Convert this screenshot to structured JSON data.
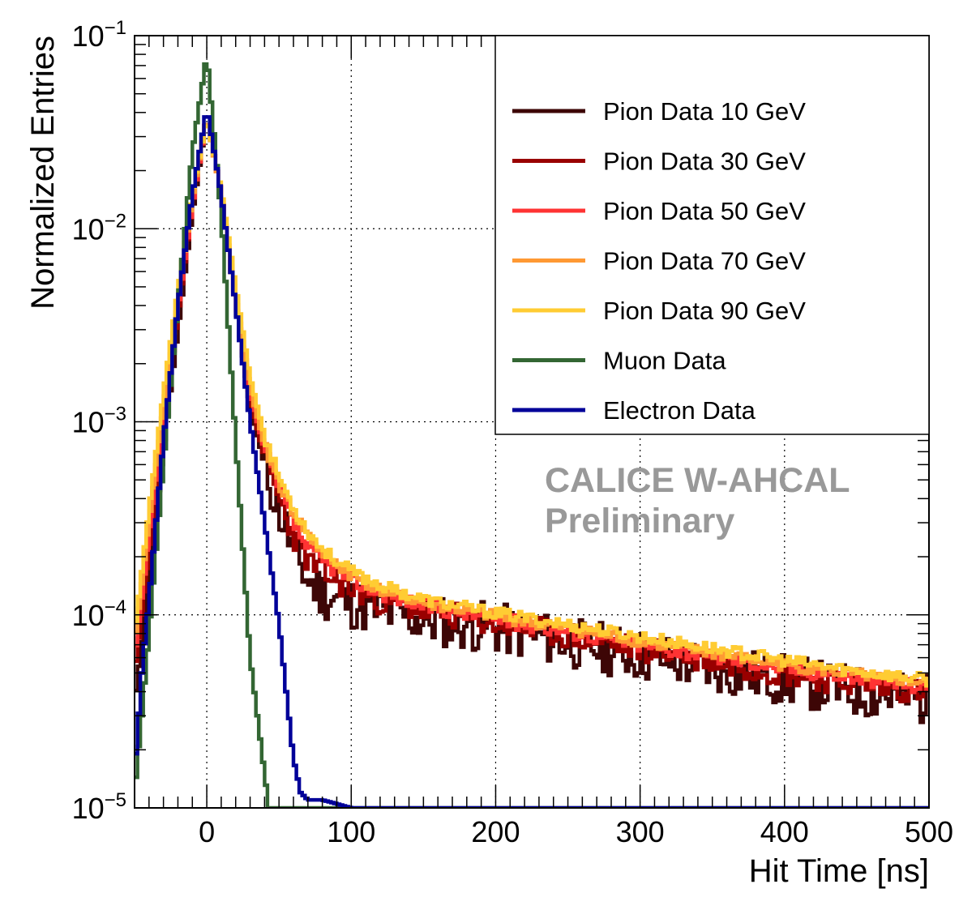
{
  "chart_data": {
    "type": "line",
    "style": "step-histogram",
    "xlabel": "Hit Time [ns]",
    "ylabel": "Normalized Entries",
    "xlim": [
      -50,
      500
    ],
    "ylim": [
      1e-05,
      0.1
    ],
    "yscale": "log",
    "grid": true,
    "x_ticks": [
      0,
      100,
      200,
      300,
      400,
      500
    ],
    "x_tick_labels": [
      "0",
      "100",
      "200",
      "300",
      "400",
      "500"
    ],
    "y_ticks": [
      -5,
      -4,
      -3,
      -2,
      -1
    ],
    "y_tick_labels": [
      {
        "base": "10",
        "exp": "−5"
      },
      {
        "base": "10",
        "exp": "−4"
      },
      {
        "base": "10",
        "exp": "−3"
      },
      {
        "base": "10",
        "exp": "−2"
      },
      {
        "base": "10",
        "exp": "−1"
      }
    ],
    "legend_position": "top-right",
    "annotation": [
      "CALICE W-AHCAL",
      "Preliminary"
    ],
    "series": [
      {
        "name": "Pion Data 10 GeV",
        "color": "#3d0606",
        "noise": 0.35,
        "seed": 11,
        "x": [
          -50,
          -40,
          -30,
          -20,
          -10,
          0,
          10,
          20,
          30,
          40,
          50,
          60,
          70,
          80,
          90,
          100,
          120,
          150,
          200,
          250,
          300,
          350,
          400,
          450,
          500
        ],
        "y": [
          3.5e-05,
          0.00015,
          0.0007,
          0.003,
          0.012,
          0.038,
          0.015,
          0.004,
          0.0012,
          0.0006,
          0.00035,
          0.00022,
          0.00015,
          0.00013,
          0.00012,
          0.000115,
          0.000105,
          9.5e-05,
          8.5e-05,
          7.2e-05,
          6.2e-05,
          5.3e-05,
          4.6e-05,
          4e-05,
          3.6e-05
        ]
      },
      {
        "name": "Pion Data 30 GeV",
        "color": "#990000",
        "noise": 0.18,
        "seed": 23,
        "x": [
          -50,
          -40,
          -30,
          -20,
          -10,
          0,
          10,
          20,
          30,
          40,
          50,
          60,
          70,
          80,
          90,
          100,
          120,
          150,
          200,
          250,
          300,
          350,
          400,
          450,
          500
        ],
        "y": [
          5e-05,
          0.0002,
          0.0009,
          0.0035,
          0.013,
          0.038,
          0.015,
          0.004,
          0.0013,
          0.00065,
          0.0004,
          0.00026,
          0.00019,
          0.000165,
          0.00015,
          0.000135,
          0.000118,
          0.000105,
          9e-05,
          7.8e-05,
          6.7e-05,
          5.8e-05,
          5e-05,
          4.4e-05,
          4e-05
        ]
      },
      {
        "name": "Pion Data 50 GeV",
        "color": "#ff3333",
        "noise": 0.1,
        "seed": 37,
        "x": [
          -50,
          -40,
          -30,
          -20,
          -10,
          0,
          10,
          20,
          30,
          40,
          50,
          60,
          70,
          80,
          90,
          100,
          120,
          150,
          200,
          250,
          300,
          350,
          400,
          450,
          500
        ],
        "y": [
          6e-05,
          0.00025,
          0.001,
          0.0038,
          0.013,
          0.038,
          0.015,
          0.0042,
          0.0014,
          0.00072,
          0.00045,
          0.0003,
          0.00022,
          0.00019,
          0.00017,
          0.000152,
          0.00013,
          0.000112,
          9.5e-05,
          8.2e-05,
          7e-05,
          6.1e-05,
          5.3e-05,
          4.7e-05,
          4.2e-05
        ]
      },
      {
        "name": "Pion Data 70 GeV",
        "color": "#ff9933",
        "noise": 0.08,
        "seed": 41,
        "x": [
          -50,
          -40,
          -30,
          -20,
          -10,
          0,
          10,
          20,
          30,
          40,
          50,
          60,
          70,
          80,
          90,
          100,
          120,
          150,
          200,
          250,
          300,
          350,
          400,
          450,
          500
        ],
        "y": [
          7e-05,
          0.0003,
          0.0012,
          0.0042,
          0.014,
          0.038,
          0.015,
          0.0045,
          0.0015,
          0.00075,
          0.00048,
          0.00034,
          0.00026,
          0.00021,
          0.000182,
          0.00016,
          0.000135,
          0.000115,
          9.8e-05,
          8.5e-05,
          7.3e-05,
          6.3e-05,
          5.5e-05,
          4.9e-05,
          4.4e-05
        ]
      },
      {
        "name": "Pion Data 90 GeV",
        "color": "#ffcc33",
        "noise": 0.08,
        "seed": 53,
        "x": [
          -50,
          -40,
          -30,
          -20,
          -10,
          0,
          10,
          20,
          30,
          40,
          50,
          60,
          70,
          80,
          90,
          100,
          120,
          150,
          200,
          250,
          300,
          350,
          400,
          450,
          500
        ],
        "y": [
          8e-05,
          0.00035,
          0.0014,
          0.0048,
          0.015,
          0.037,
          0.016,
          0.005,
          0.0017,
          0.00085,
          0.00052,
          0.00036,
          0.00027,
          0.00022,
          0.00019,
          0.000168,
          0.000142,
          0.00012,
          0.000102,
          8.9e-05,
          7.7e-05,
          6.7e-05,
          5.8e-05,
          5.1e-05,
          4.6e-05
        ]
      },
      {
        "name": "Muon Data",
        "color": "#336633",
        "noise": 0.0,
        "seed": 0,
        "x": [
          -50,
          -45,
          -40,
          -30,
          -20,
          -10,
          0,
          10,
          20,
          30,
          40,
          43,
          500
        ],
        "y": [
          1.2e-05,
          3e-05,
          8e-05,
          0.0006,
          0.004,
          0.025,
          0.08,
          0.012,
          0.0008,
          6e-05,
          1.5e-05,
          1e-05,
          1e-05
        ]
      },
      {
        "name": "Electron Data",
        "color": "#000099",
        "noise": 0.0,
        "seed": 0,
        "x": [
          -50,
          -45,
          -40,
          -30,
          -20,
          -10,
          0,
          10,
          20,
          30,
          40,
          50,
          55,
          60,
          65,
          70,
          80,
          90,
          100,
          500
        ],
        "y": [
          1.5e-05,
          5e-05,
          0.00012,
          0.0008,
          0.004,
          0.015,
          0.042,
          0.015,
          0.004,
          0.001,
          0.0003,
          9e-05,
          4e-05,
          1.8e-05,
          1.2e-05,
          1.1e-05,
          1.1e-05,
          1.05e-05,
          1e-05,
          1e-05
        ]
      }
    ]
  }
}
